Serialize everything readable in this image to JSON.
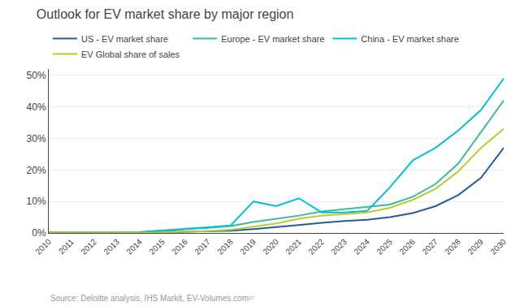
{
  "chart_data": {
    "type": "line",
    "title": "Outlook for EV market share by major region",
    "annotations": [
      "Source: Deloitte analysis, IHS Markit, EV-Volumes.com¹⁷"
    ],
    "x": [
      2010,
      2011,
      2012,
      2013,
      2014,
      2015,
      2016,
      2017,
      2018,
      2019,
      2020,
      2021,
      2022,
      2023,
      2024,
      2025,
      2026,
      2027,
      2028,
      2029,
      2030
    ],
    "series": [
      {
        "name": "US - EV market share",
        "color": "#1F5F99",
        "values": [
          0.001,
          0.001,
          0.001,
          0.001,
          0.001,
          0.002,
          0.004,
          0.006,
          0.007,
          0.012,
          0.018,
          0.025,
          0.032,
          0.038,
          0.042,
          0.05,
          0.063,
          0.085,
          0.12,
          0.175,
          0.27
        ]
      },
      {
        "name": "Europe - EV market share",
        "color": "#3DB8A0",
        "values": [
          0.001,
          0.001,
          0.001,
          0.001,
          0.002,
          0.003,
          0.012,
          0.016,
          0.022,
          0.035,
          0.045,
          0.055,
          0.068,
          0.075,
          0.082,
          0.09,
          0.115,
          0.155,
          0.22,
          0.32,
          0.42
        ]
      },
      {
        "name": "China - EV market share",
        "color": "#00C0D8",
        "values": [
          0.001,
          0.001,
          0.001,
          0.001,
          0.003,
          0.008,
          0.012,
          0.018,
          0.024,
          0.1,
          0.085,
          0.11,
          0.065,
          0.065,
          0.07,
          0.145,
          0.23,
          0.27,
          0.325,
          0.39,
          0.49
        ]
      },
      {
        "name": "EV Global share of sales",
        "color": "#B8CC2A",
        "values": [
          0.001,
          0.001,
          0.001,
          0.001,
          0.001,
          0.002,
          0.004,
          0.006,
          0.01,
          0.02,
          0.03,
          0.045,
          0.055,
          0.06,
          0.065,
          0.08,
          0.105,
          0.14,
          0.195,
          0.27,
          0.33
        ]
      }
    ],
    "xlim": [
      2010,
      2030
    ],
    "xticks": [
      2010,
      2011,
      2012,
      2013,
      2014,
      2015,
      2016,
      2017,
      2018,
      2019,
      2020,
      2021,
      2022,
      2023,
      2024,
      2025,
      2026,
      2027,
      2028,
      2029,
      2030
    ],
    "ylim": [
      0,
      0.52
    ],
    "yticks": [
      {
        "value": 0,
        "label": "0%"
      },
      {
        "value": 0.1,
        "label": "10%"
      },
      {
        "value": 0.2,
        "label": "20%"
      },
      {
        "value": 0.3,
        "label": "30%"
      },
      {
        "value": 0.4,
        "label": "40%"
      },
      {
        "value": 0.5,
        "label": "50%"
      }
    ],
    "grid": true,
    "legend": "upper left"
  }
}
